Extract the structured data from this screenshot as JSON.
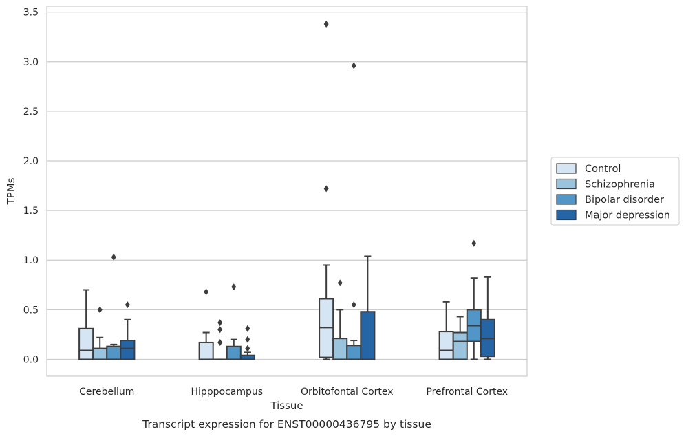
{
  "chart_data": {
    "type": "box",
    "xlabel": "Tissue",
    "ylabel": "TPMs",
    "caption": "Transcript expression for ENST00000436795 by tissue",
    "ylim": [
      -0.17,
      3.56
    ],
    "yticks": [
      "0.0",
      "0.5",
      "1.0",
      "1.5",
      "2.0",
      "2.5",
      "3.0",
      "3.5"
    ],
    "grid": "horizontal",
    "legend_position": "right",
    "categories": [
      "Cerebellum",
      "Hipppocampus",
      "Orbitofontal Cortex",
      "Prefrontal Cortex"
    ],
    "series": [
      {
        "name": "Control",
        "color": "#d6e5f4",
        "boxes": [
          {
            "whislo": 0.0,
            "q1": 0.0,
            "med": 0.09,
            "q3": 0.31,
            "whishi": 0.7,
            "fliers": []
          },
          {
            "whislo": 0.0,
            "q1": 0.0,
            "med": 0.0,
            "q3": 0.17,
            "whishi": 0.27,
            "fliers": [
              0.68
            ]
          },
          {
            "whislo": 0.0,
            "q1": 0.02,
            "med": 0.32,
            "q3": 0.61,
            "whishi": 0.95,
            "fliers": [
              1.72,
              3.38
            ]
          },
          {
            "whislo": 0.0,
            "q1": 0.0,
            "med": 0.09,
            "q3": 0.28,
            "whishi": 0.58,
            "fliers": []
          }
        ]
      },
      {
        "name": "Schizophrenia",
        "color": "#9ac4de",
        "boxes": [
          {
            "whislo": 0.0,
            "q1": 0.0,
            "med": 0.0,
            "q3": 0.11,
            "whishi": 0.22,
            "fliers": [
              0.5
            ]
          },
          {
            "whislo": 0.0,
            "q1": 0.0,
            "med": 0.0,
            "q3": 0.0,
            "whishi": 0.0,
            "fliers": [
              0.17,
              0.3,
              0.37
            ]
          },
          {
            "whislo": 0.0,
            "q1": 0.0,
            "med": 0.0,
            "q3": 0.21,
            "whishi": 0.5,
            "fliers": [
              0.77
            ]
          },
          {
            "whislo": 0.0,
            "q1": 0.0,
            "med": 0.18,
            "q3": 0.27,
            "whishi": 0.43,
            "fliers": []
          }
        ]
      },
      {
        "name": "Bipolar disorder",
        "color": "#5196c6",
        "boxes": [
          {
            "whislo": 0.0,
            "q1": 0.0,
            "med": 0.13,
            "q3": 0.13,
            "whishi": 0.15,
            "fliers": [
              1.03
            ]
          },
          {
            "whislo": 0.0,
            "q1": 0.0,
            "med": 0.0,
            "q3": 0.13,
            "whishi": 0.2,
            "fliers": [
              0.73
            ]
          },
          {
            "whislo": 0.0,
            "q1": 0.0,
            "med": 0.0,
            "q3": 0.14,
            "whishi": 0.19,
            "fliers": [
              0.55,
              2.96
            ]
          },
          {
            "whislo": 0.0,
            "q1": 0.18,
            "med": 0.34,
            "q3": 0.5,
            "whishi": 0.82,
            "fliers": [
              1.17
            ]
          }
        ]
      },
      {
        "name": "Major depression",
        "color": "#2565a6",
        "boxes": [
          {
            "whislo": 0.0,
            "q1": 0.0,
            "med": 0.11,
            "q3": 0.19,
            "whishi": 0.4,
            "fliers": [
              0.55
            ]
          },
          {
            "whislo": 0.0,
            "q1": 0.0,
            "med": 0.0,
            "q3": 0.04,
            "whishi": 0.07,
            "fliers": [
              0.11,
              0.2,
              0.31
            ]
          },
          {
            "whislo": 0.0,
            "q1": 0.0,
            "med": 0.0,
            "q3": 0.48,
            "whishi": 1.04,
            "fliers": []
          },
          {
            "whislo": 0.0,
            "q1": 0.03,
            "med": 0.21,
            "q3": 0.4,
            "whishi": 0.83,
            "fliers": []
          }
        ]
      }
    ]
  }
}
